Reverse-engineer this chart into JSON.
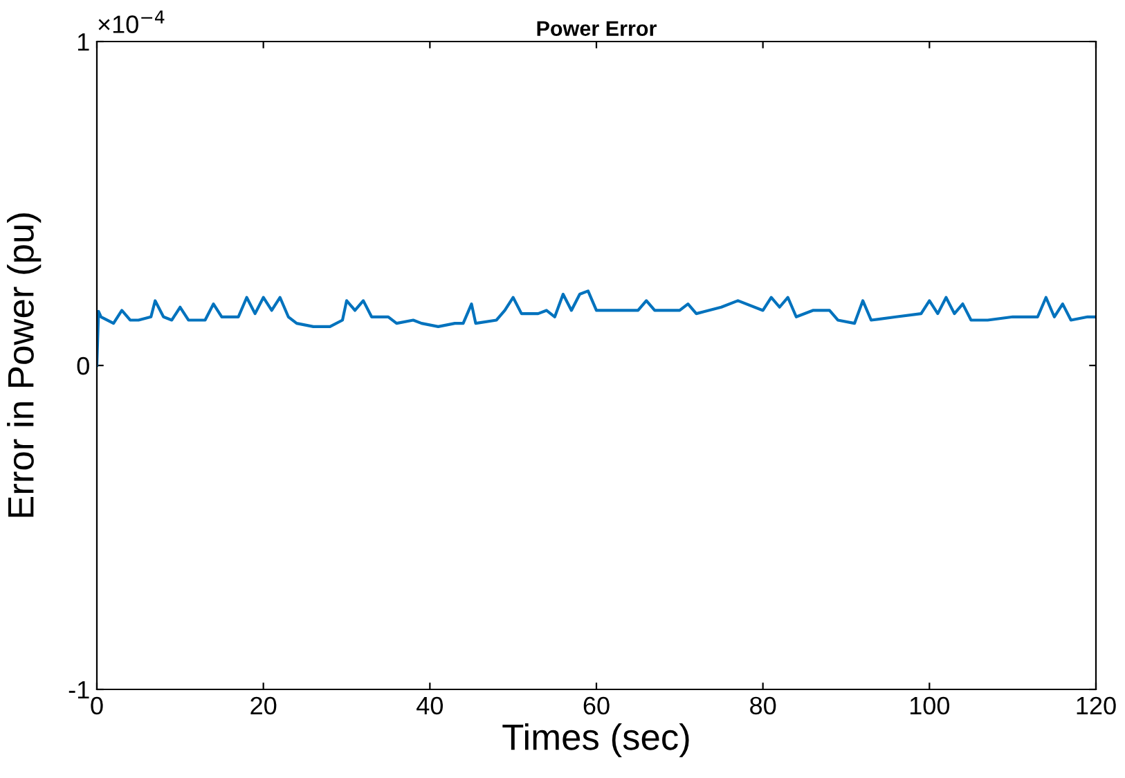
{
  "chart_data": {
    "type": "line",
    "title": "Power Error",
    "xlabel": "Times (sec)",
    "ylabel": "Error in Power (pu)",
    "annotations": [
      "×10$^{−4}$"
    ],
    "xlim": [
      0,
      120
    ],
    "xticks": [
      0,
      20,
      40,
      60,
      80,
      100,
      120
    ],
    "ylim": [
      -1,
      1
    ],
    "yticks": [
      -1,
      0,
      1
    ],
    "grid": false,
    "legend": false,
    "series": [
      {
        "color": "#0072bd",
        "x": [
          0,
          0.2,
          0.5,
          2,
          3,
          4,
          5,
          6.5,
          7,
          8,
          9,
          10,
          11,
          13,
          14,
          15,
          17,
          18,
          19,
          20,
          21,
          22,
          23,
          24,
          26,
          28,
          29.5,
          30,
          31,
          32,
          33,
          35,
          36,
          38,
          39,
          41,
          43,
          44,
          45,
          45.5,
          48,
          49,
          50,
          51,
          53,
          54,
          55,
          56,
          57,
          58,
          59,
          60,
          62,
          65,
          66,
          67,
          70,
          71,
          72,
          75,
          77,
          80,
          81,
          82,
          83,
          84,
          86,
          88,
          89,
          91,
          92,
          93,
          96,
          99,
          100,
          101,
          102,
          103,
          104,
          105,
          107,
          110,
          113,
          114,
          115,
          116,
          117,
          119,
          120
        ],
        "values": [
          0,
          0.167,
          0.15,
          0.13,
          0.17,
          0.14,
          0.14,
          0.15,
          0.2,
          0.15,
          0.14,
          0.18,
          0.14,
          0.14,
          0.19,
          0.15,
          0.15,
          0.21,
          0.16,
          0.21,
          0.17,
          0.21,
          0.15,
          0.13,
          0.12,
          0.12,
          0.14,
          0.2,
          0.17,
          0.2,
          0.15,
          0.15,
          0.13,
          0.14,
          0.13,
          0.12,
          0.13,
          0.13,
          0.19,
          0.13,
          0.14,
          0.17,
          0.21,
          0.16,
          0.16,
          0.17,
          0.15,
          0.22,
          0.17,
          0.22,
          0.23,
          0.17,
          0.17,
          0.17,
          0.2,
          0.17,
          0.17,
          0.19,
          0.16,
          0.18,
          0.2,
          0.17,
          0.21,
          0.18,
          0.21,
          0.15,
          0.17,
          0.17,
          0.14,
          0.13,
          0.2,
          0.14,
          0.15,
          0.16,
          0.2,
          0.16,
          0.21,
          0.16,
          0.19,
          0.14,
          0.14,
          0.15,
          0.15,
          0.21,
          0.15,
          0.19,
          0.14,
          0.15,
          0.15
        ]
      }
    ]
  }
}
